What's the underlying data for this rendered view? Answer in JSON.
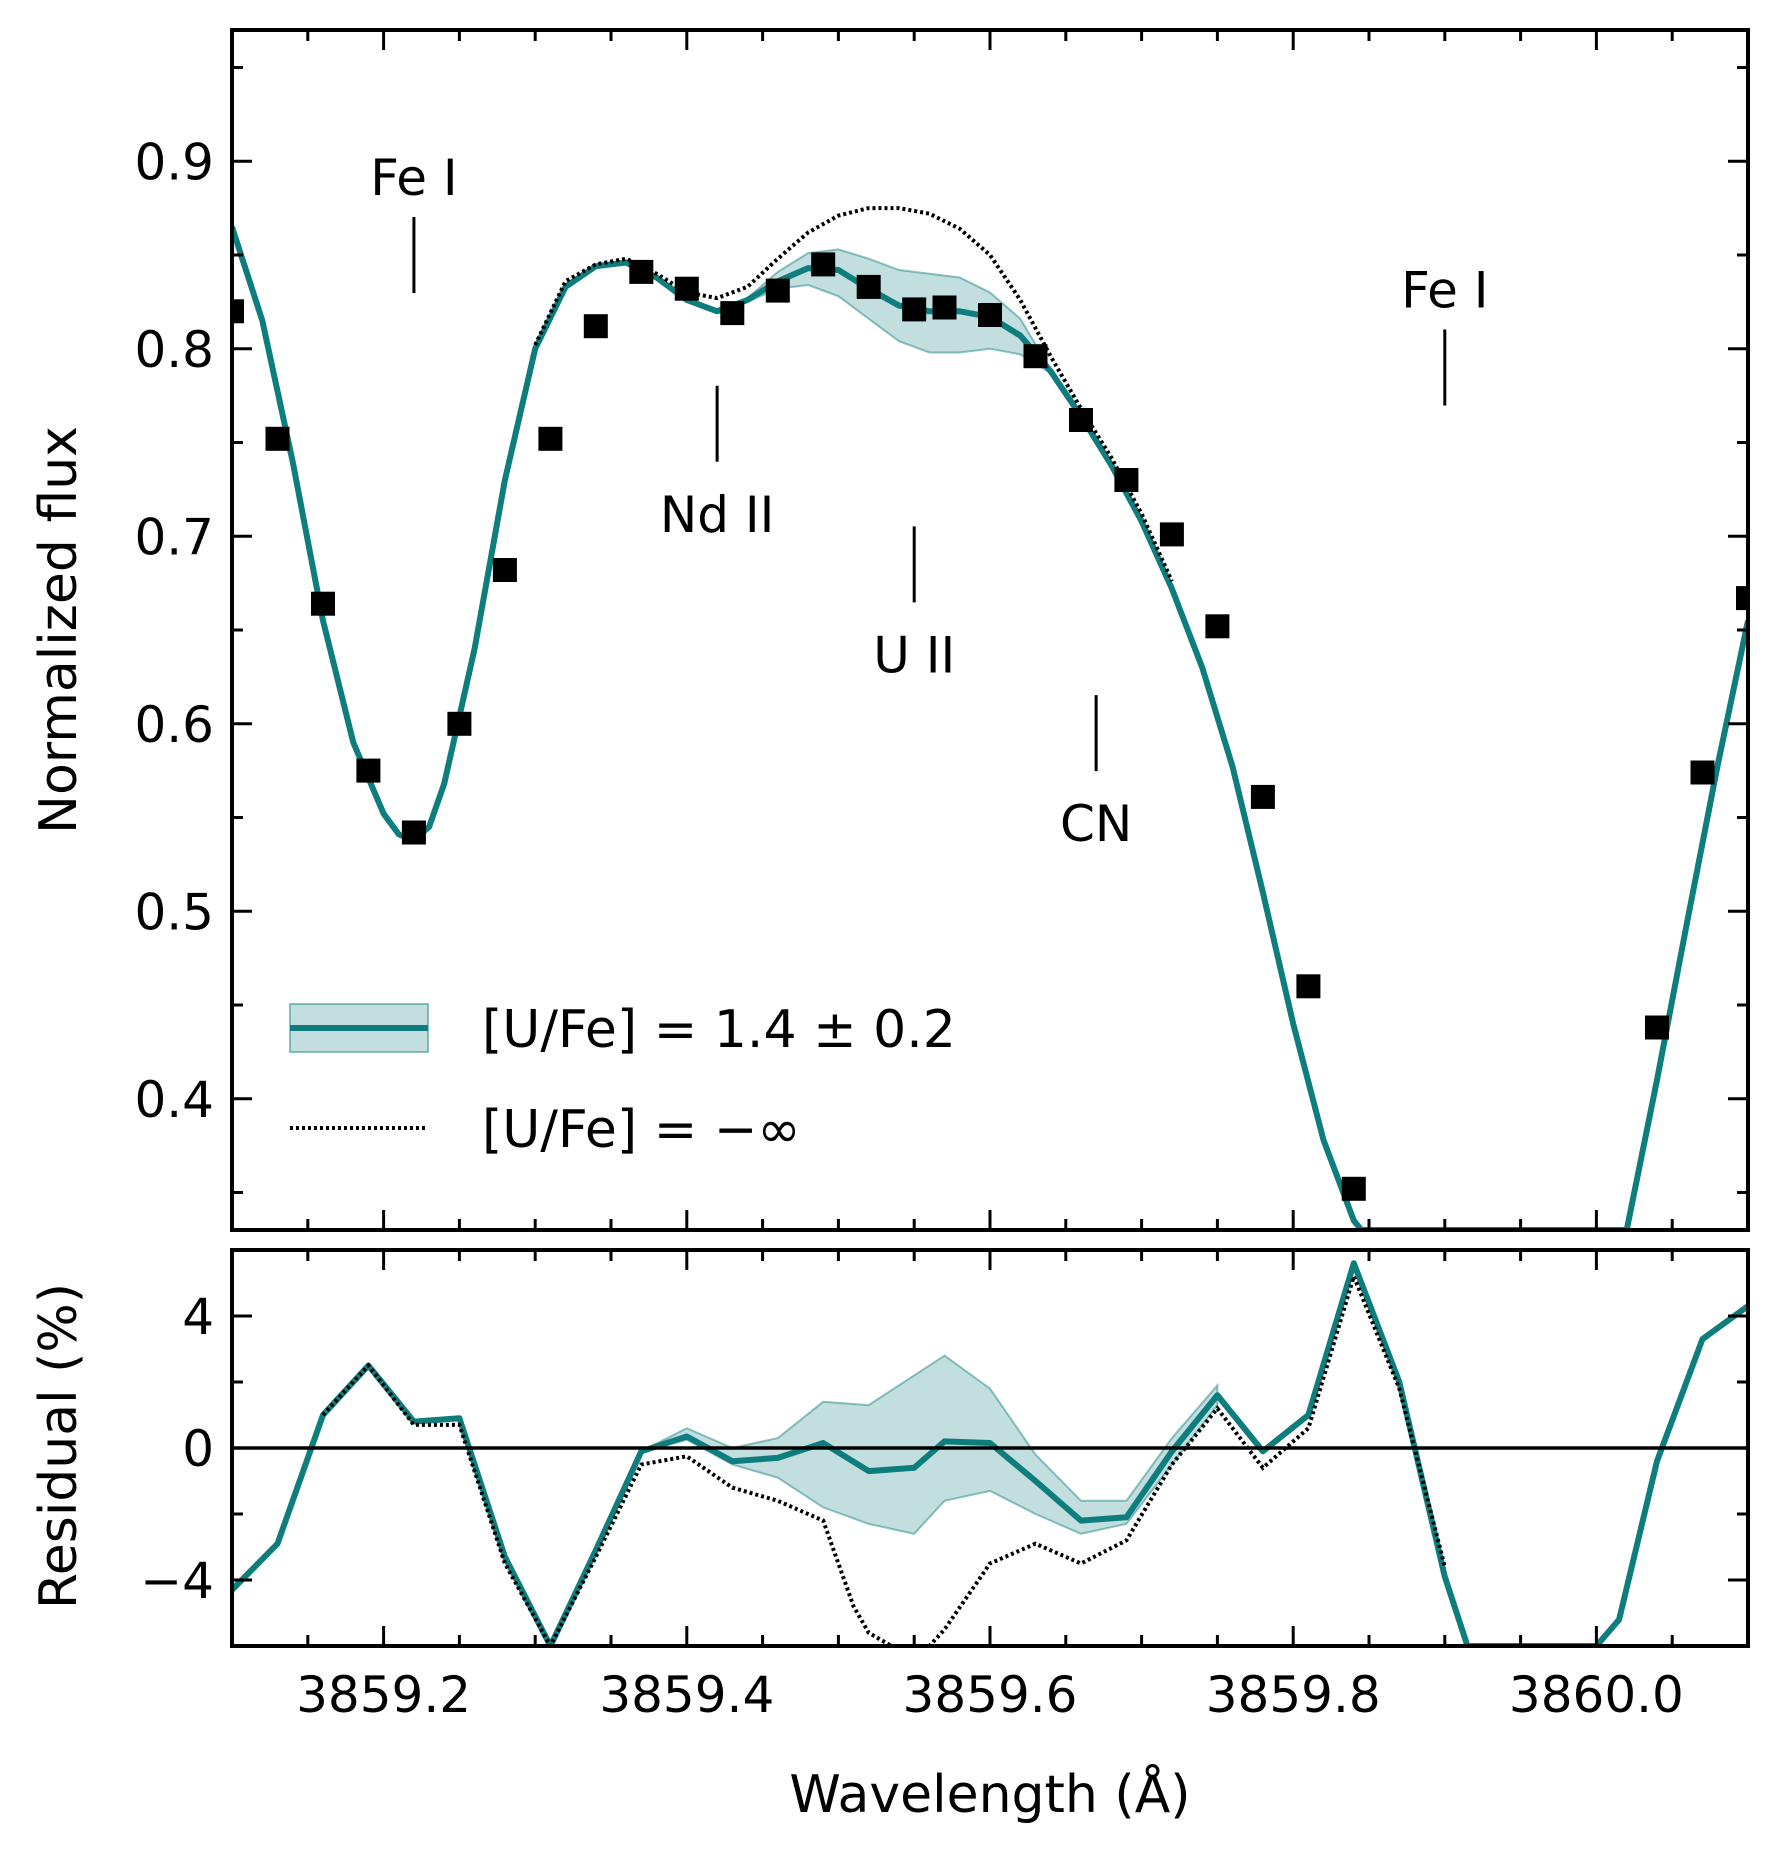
{
  "chart_data": [
    {
      "type": "line",
      "panel": "top",
      "ylabel": "Normalized flux",
      "xlim": [
        3859.1,
        3860.1
      ],
      "ylim": [
        0.33,
        0.97
      ],
      "xticks": [
        3859.2,
        3859.4,
        3859.6,
        3859.8,
        3860.0
      ],
      "yticks": [
        0.4,
        0.5,
        0.6,
        0.7,
        0.8,
        0.9
      ],
      "ytick_labels": [
        "0.4",
        "0.5",
        "0.6",
        "0.7",
        "0.8",
        "0.9"
      ],
      "grid": false,
      "legend": {
        "position": "lower-left",
        "entries": [
          "[U/Fe] = 1.4 ± 0.2",
          "[U/Fe] = −∞"
        ]
      },
      "annotations": [
        {
          "text": "Fe I",
          "x": 3859.22,
          "y": 0.85,
          "placement": "above"
        },
        {
          "text": "Nd II",
          "x": 3859.42,
          "y": 0.76,
          "placement": "below"
        },
        {
          "text": "U II",
          "x": 3859.55,
          "y": 0.685,
          "placement": "below"
        },
        {
          "text": "CN",
          "x": 3859.67,
          "y": 0.595,
          "placement": "below"
        },
        {
          "text": "Fe I",
          "x": 3859.9,
          "y": 0.79,
          "placement": "above"
        }
      ],
      "series": [
        {
          "name": "observed",
          "style": "square-markers",
          "color": "#000000",
          "x": [
            3859.1,
            3859.13,
            3859.16,
            3859.19,
            3859.22,
            3859.25,
            3859.28,
            3859.31,
            3859.34,
            3859.37,
            3859.4,
            3859.43,
            3859.46,
            3859.49,
            3859.52,
            3859.55,
            3859.57,
            3859.6,
            3859.63,
            3859.66,
            3859.69,
            3859.72,
            3859.75,
            3859.78,
            3859.81,
            3859.84,
            3860.04,
            3860.07,
            3860.1
          ],
          "y": [
            0.82,
            0.752,
            0.664,
            0.575,
            0.542,
            0.6,
            0.682,
            0.752,
            0.812,
            0.841,
            0.832,
            0.819,
            0.831,
            0.845,
            0.833,
            0.821,
            0.822,
            0.818,
            0.796,
            0.762,
            0.73,
            0.701,
            0.652,
            0.561,
            0.46,
            0.352,
            0.438,
            0.574,
            0.667
          ]
        },
        {
          "name": "[U/Fe] = 1.4 ± 0.2",
          "style": "solid",
          "color": "#0d7d7d",
          "x": [
            3859.1,
            3859.12,
            3859.14,
            3859.16,
            3859.18,
            3859.2,
            3859.21,
            3859.22,
            3859.23,
            3859.24,
            3859.26,
            3859.28,
            3859.3,
            3859.32,
            3859.34,
            3859.36,
            3859.38,
            3859.4,
            3859.42,
            3859.44,
            3859.46,
            3859.48,
            3859.5,
            3859.52,
            3859.54,
            3859.56,
            3859.58,
            3859.6,
            3859.62,
            3859.64,
            3859.66,
            3859.68,
            3859.7,
            3859.72,
            3859.74,
            3859.76,
            3859.78,
            3859.8,
            3859.82,
            3859.84,
            3859.845,
            3860.02,
            3860.04,
            3860.06,
            3860.08,
            3860.1
          ],
          "y": [
            0.865,
            0.815,
            0.74,
            0.655,
            0.59,
            0.552,
            0.541,
            0.538,
            0.545,
            0.568,
            0.64,
            0.73,
            0.8,
            0.833,
            0.844,
            0.846,
            0.838,
            0.826,
            0.82,
            0.826,
            0.836,
            0.843,
            0.842,
            0.832,
            0.823,
            0.82,
            0.82,
            0.817,
            0.807,
            0.788,
            0.764,
            0.738,
            0.708,
            0.672,
            0.63,
            0.577,
            0.51,
            0.44,
            0.378,
            0.335,
            0.33,
            0.33,
            0.41,
            0.495,
            0.578,
            0.655
          ]
        },
        {
          "name": "[U/Fe] = −∞",
          "style": "dotted",
          "color": "#000000",
          "x": [
            3859.3,
            3859.32,
            3859.34,
            3859.36,
            3859.38,
            3859.4,
            3859.42,
            3859.44,
            3859.46,
            3859.48,
            3859.5,
            3859.52,
            3859.54,
            3859.56,
            3859.58,
            3859.6,
            3859.62,
            3859.64,
            3859.66,
            3859.68,
            3859.7,
            3859.72
          ],
          "y": [
            0.802,
            0.836,
            0.845,
            0.848,
            0.84,
            0.83,
            0.827,
            0.833,
            0.848,
            0.862,
            0.871,
            0.875,
            0.875,
            0.872,
            0.864,
            0.85,
            0.826,
            0.796,
            0.768,
            0.742,
            0.712,
            0.676
          ]
        }
      ],
      "band": {
        "name": "[U/Fe] = 1.4 ± 0.2",
        "color": "#0d7d7d",
        "x": [
          3859.4,
          3859.42,
          3859.44,
          3859.46,
          3859.48,
          3859.5,
          3859.52,
          3859.54,
          3859.56,
          3859.58,
          3859.6,
          3859.62,
          3859.64
        ],
        "y_low": [
          0.826,
          0.82,
          0.825,
          0.832,
          0.834,
          0.828,
          0.816,
          0.804,
          0.798,
          0.798,
          0.8,
          0.797,
          0.787
        ],
        "y_high": [
          0.826,
          0.821,
          0.827,
          0.841,
          0.851,
          0.853,
          0.848,
          0.842,
          0.84,
          0.838,
          0.83,
          0.816,
          0.789
        ]
      }
    },
    {
      "type": "line",
      "panel": "bottom",
      "xlabel": "Wavelength (Å)",
      "ylabel": "Residual (%)",
      "xlim": [
        3859.1,
        3860.1
      ],
      "ylim": [
        -6,
        6
      ],
      "xticks": [
        3859.2,
        3859.4,
        3859.6,
        3859.8,
        3860.0
      ],
      "xtick_labels": [
        "3859.2",
        "3859.4",
        "3859.6",
        "3859.8",
        "3860.0"
      ],
      "yticks": [
        -4,
        0,
        4
      ],
      "ytick_labels": [
        "−4",
        "0",
        "4"
      ],
      "grid": false,
      "reference_line": 0,
      "series": [
        {
          "name": "[U/Fe] = 1.4 ± 0.2",
          "style": "solid",
          "color": "#0d7d7d",
          "x": [
            3859.1,
            3859.13,
            3859.16,
            3859.19,
            3859.22,
            3859.25,
            3859.28,
            3859.31,
            3859.34,
            3859.37,
            3859.4,
            3859.43,
            3859.46,
            3859.49,
            3859.52,
            3859.55,
            3859.57,
            3859.6,
            3859.63,
            3859.66,
            3859.69,
            3859.72,
            3859.75,
            3859.78,
            3859.81,
            3859.84,
            3859.87,
            3859.9,
            3859.915,
            3860.0,
            3860.015,
            3860.04,
            3860.07,
            3860.1
          ],
          "y": [
            -4.3,
            -2.9,
            1.0,
            2.5,
            0.8,
            0.9,
            -3.3,
            -6.0,
            -3.1,
            -0.1,
            0.35,
            -0.4,
            -0.3,
            0.15,
            -0.7,
            -0.6,
            0.2,
            0.15,
            -1.0,
            -2.2,
            -2.1,
            -0.1,
            1.6,
            -0.1,
            1.0,
            5.6,
            2.0,
            -3.9,
            -6.0,
            -6.0,
            -5.2,
            -0.4,
            3.3,
            4.3
          ]
        },
        {
          "name": "[U/Fe] = −∞",
          "style": "dotted",
          "color": "#000000",
          "x": [
            3859.16,
            3859.19,
            3859.22,
            3859.25,
            3859.28,
            3859.31,
            3859.34,
            3859.37,
            3859.4,
            3859.43,
            3859.46,
            3859.49,
            3859.51,
            3859.52,
            3859.535,
            3859.56,
            3859.57,
            3859.6,
            3859.63,
            3859.66,
            3859.69,
            3859.72,
            3859.75,
            3859.78,
            3859.81,
            3859.84,
            3859.87,
            3859.9
          ],
          "y": [
            1.0,
            2.5,
            0.7,
            0.7,
            -3.5,
            -6.0,
            -3.3,
            -0.5,
            -0.25,
            -1.2,
            -1.6,
            -2.2,
            -4.8,
            -5.6,
            -6.0,
            -6.0,
            -5.5,
            -3.5,
            -2.9,
            -3.5,
            -2.8,
            -0.5,
            1.2,
            -0.6,
            0.6,
            5.2,
            1.8,
            -3.6
          ]
        }
      ],
      "band": {
        "name": "[U/Fe] = 1.4 ± 0.2",
        "color": "#0d7d7d",
        "x": [
          3859.37,
          3859.4,
          3859.43,
          3859.46,
          3859.49,
          3859.52,
          3859.55,
          3859.57,
          3859.6,
          3859.63,
          3859.66,
          3859.69,
          3859.72,
          3859.75
        ],
        "y_low": [
          -0.1,
          0.25,
          -0.5,
          -0.9,
          -1.8,
          -2.3,
          -2.6,
          -1.6,
          -1.3,
          -2.0,
          -2.6,
          -2.3,
          -0.5,
          1.3
        ],
        "y_high": [
          -0.1,
          0.6,
          0.0,
          0.3,
          1.4,
          1.3,
          2.2,
          2.8,
          1.8,
          -0.2,
          -1.6,
          -1.6,
          0.3,
          1.9
        ]
      }
    }
  ]
}
